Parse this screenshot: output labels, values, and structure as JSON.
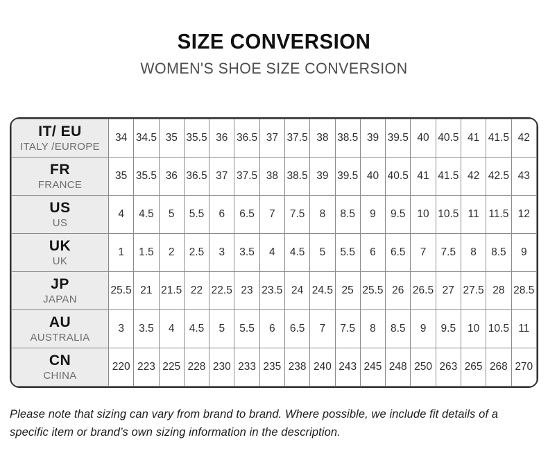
{
  "title": "SIZE CONVERSION",
  "subtitle": "WOMEN'S SHOE SIZE CONVERSION",
  "table": {
    "rows": [
      {
        "code": "IT/ EU",
        "region": "ITALY /EUROPE",
        "values": [
          "34",
          "34.5",
          "35",
          "35.5",
          "36",
          "36.5",
          "37",
          "37.5",
          "38",
          "38.5",
          "39",
          "39.5",
          "40",
          "40.5",
          "41",
          "41.5",
          "42"
        ]
      },
      {
        "code": "FR",
        "region": "FRANCE",
        "values": [
          "35",
          "35.5",
          "36",
          "36.5",
          "37",
          "37.5",
          "38",
          "38.5",
          "39",
          "39.5",
          "40",
          "40.5",
          "41",
          "41.5",
          "42",
          "42.5",
          "43"
        ]
      },
      {
        "code": "US",
        "region": "US",
        "values": [
          "4",
          "4.5",
          "5",
          "5.5",
          "6",
          "6.5",
          "7",
          "7.5",
          "8",
          "8.5",
          "9",
          "9.5",
          "10",
          "10.5",
          "11",
          "11.5",
          "12"
        ]
      },
      {
        "code": "UK",
        "region": "UK",
        "values": [
          "1",
          "1.5",
          "2",
          "2.5",
          "3",
          "3.5",
          "4",
          "4.5",
          "5",
          "5.5",
          "6",
          "6.5",
          "7",
          "7.5",
          "8",
          "8.5",
          "9"
        ]
      },
      {
        "code": "JP",
        "region": "JAPAN",
        "values": [
          "25.5",
          "21",
          "21.5",
          "22",
          "22.5",
          "23",
          "23.5",
          "24",
          "24.5",
          "25",
          "25.5",
          "26",
          "26.5",
          "27",
          "27.5",
          "28",
          "28.5"
        ]
      },
      {
        "code": "AU",
        "region": "AUSTRALIA",
        "values": [
          "3",
          "3.5",
          "4",
          "4.5",
          "5",
          "5.5",
          "6",
          "6.5",
          "7",
          "7.5",
          "8",
          "8.5",
          "9",
          "9.5",
          "10",
          "10.5",
          "11"
        ]
      },
      {
        "code": "CN",
        "region": "CHINA",
        "values": [
          "220",
          "223",
          "225",
          "228",
          "230",
          "233",
          "235",
          "238",
          "240",
          "243",
          "245",
          "248",
          "250",
          "263",
          "265",
          "268",
          "270"
        ]
      }
    ]
  },
  "footer_note": "Please note that sizing can vary from brand to brand. Where possible, we include fit details of a specific item or brand’s own sizing information in the description."
}
